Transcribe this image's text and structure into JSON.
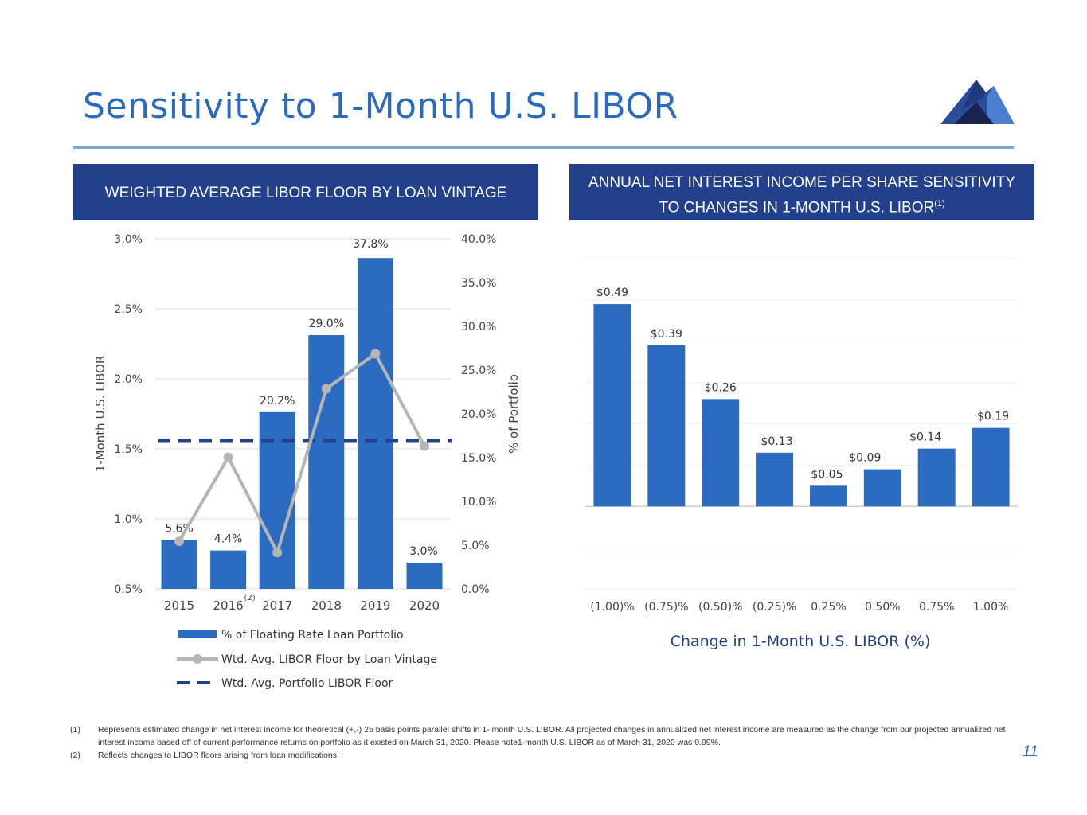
{
  "title": "Sensitivity to 1-Month U.S. LIBOR",
  "colors": {
    "accent": "#2a6bbf",
    "header_bg": "#22408c",
    "bar": "#2b6cc0",
    "line": "#b5b5b5",
    "dash": "#22408c"
  },
  "left_panel": {
    "header": "WEIGHTED AVERAGE LIBOR FLOOR BY LOAN VINTAGE"
  },
  "right_panel": {
    "header_line1": "ANNUAL NET INTEREST INCOME PER SHARE SENSITIVITY",
    "header_line2": "TO CHANGES IN 1-MONTH U.S. LIBOR",
    "header_sup": "(1)"
  },
  "chart_data": [
    {
      "type": "bar",
      "categories": [
        "2015",
        "2016",
        "2017",
        "2018",
        "2019",
        "2020"
      ],
      "category_note": {
        "index": 1,
        "text": "(2)"
      },
      "series": [
        {
          "name": "% of Floating Rate Loan Portfolio",
          "kind": "bar",
          "axis": "right",
          "values": [
            5.6,
            4.4,
            20.2,
            29.0,
            37.8,
            3.0
          ],
          "labels": [
            "5.6%",
            "4.4%",
            "20.2%",
            "29.0%",
            "37.8%",
            "3.0%"
          ]
        },
        {
          "name": "Wtd. Avg. LIBOR Floor by Loan Vintage",
          "kind": "line",
          "axis": "left",
          "values": [
            0.84,
            1.44,
            0.76,
            1.93,
            2.18,
            1.52
          ]
        },
        {
          "name": "Wtd. Avg. Portfolio LIBOR Floor",
          "kind": "dashed",
          "axis": "left",
          "value": 1.56
        }
      ],
      "left_axis": {
        "label": "1-Month U.S. LIBOR",
        "min": 0.5,
        "max": 3.0,
        "ticks": [
          "0.5%",
          "1.0%",
          "1.5%",
          "2.0%",
          "2.5%",
          "3.0%"
        ]
      },
      "right_axis": {
        "label": "% of Portfolio",
        "min": 0,
        "max": 40,
        "ticks": [
          "0.0%",
          "5.0%",
          "10.0%",
          "15.0%",
          "20.0%",
          "25.0%",
          "30.0%",
          "35.0%",
          "40.0%"
        ]
      },
      "legend": "bottom"
    },
    {
      "type": "bar",
      "title": "",
      "categories": [
        "(1.00)%",
        "(0.75)%",
        "(0.50)%",
        "(0.25)%",
        "0.25%",
        "0.50%",
        "0.75%",
        "1.00%"
      ],
      "values": [
        0.49,
        0.39,
        0.26,
        0.13,
        0.05,
        0.09,
        0.14,
        0.19
      ],
      "labels": [
        "$0.49",
        "$0.39",
        "$0.26",
        "$0.13",
        "$0.05",
        "$0.09",
        "$0.14",
        "$0.19"
      ],
      "xlabel": "Change in 1-Month U.S. LIBOR (%)",
      "ylim": [
        -0.2,
        0.6
      ]
    }
  ],
  "footnotes": [
    {
      "num": "(1)",
      "text": "Represents estimated change in net interest income for theoretical (+,-) 25 basis points parallel shifts in 1- month U.S. LIBOR. All projected changes in annualized net interest income are measured as the change from our projected annualized net interest income based off of current performance returns on portfolio as it existed on March 31, 2020. Please note1-month U.S. LIBOR as of March 31, 2020 was 0.99%."
    },
    {
      "num": "(2)",
      "text": "Reflects changes to LIBOR floors arising from loan modifications."
    }
  ],
  "page_number": "11"
}
